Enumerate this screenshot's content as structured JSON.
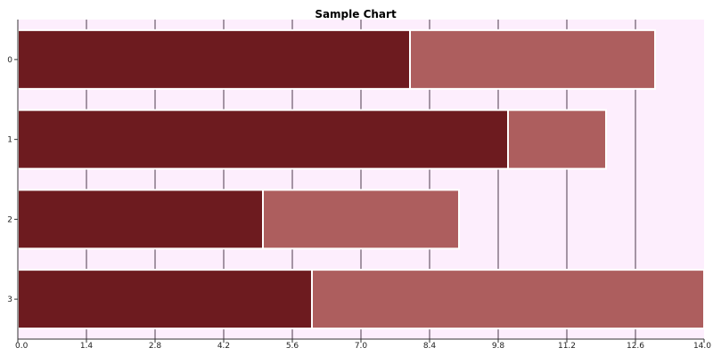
{
  "chart_data": {
    "type": "bar",
    "orientation": "horizontal",
    "stacked": true,
    "title": "Sample Chart",
    "categories": [
      "0",
      "1",
      "2",
      "3"
    ],
    "series": [
      {
        "values": [
          8,
          10,
          5,
          6
        ]
      },
      {
        "values": [
          5,
          2,
          4,
          8
        ]
      }
    ],
    "xlim": [
      0,
      14
    ],
    "x_ticks": [
      "0.0",
      "1.4",
      "2.8",
      "4.2",
      "5.6",
      "7.0",
      "8.4",
      "9.8",
      "11.2",
      "12.6",
      "14.0"
    ],
    "grid": "vertical",
    "colors": {
      "plot_background": "#fdeefd",
      "series_0": "#6d1b1f",
      "series_1": "#ad5e5e",
      "bar_border": "#ffffff",
      "grid": "#4a3a4a",
      "axis": "#333333"
    }
  }
}
